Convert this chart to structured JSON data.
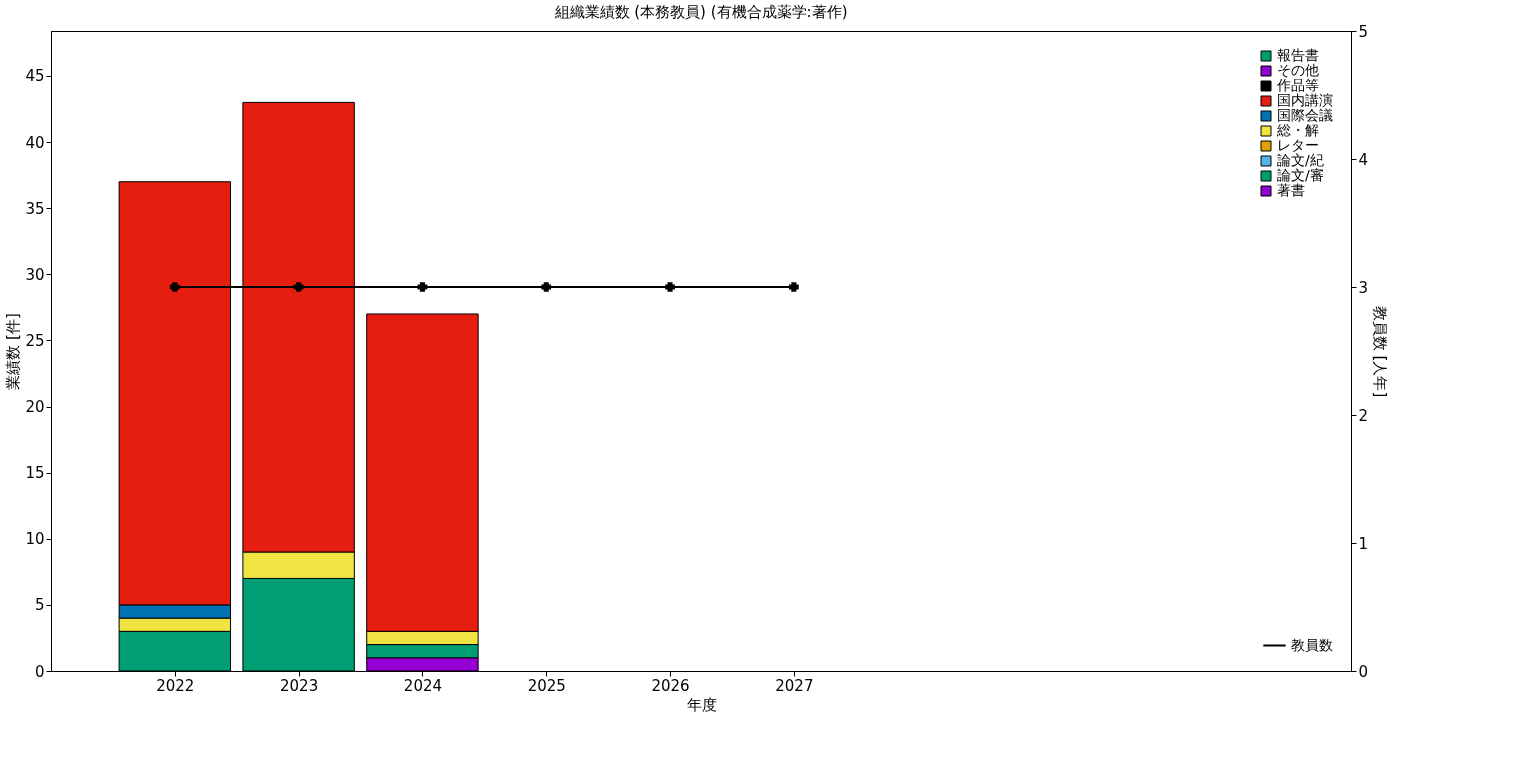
{
  "chart_data": {
    "type": "bar",
    "title": "組織業績数 (本務教員) (有機合成薬学:著作)",
    "xlabel": "年度",
    "ylabel": "業績数 [件]",
    "y2label": "教員数 [人年]",
    "x": [
      2022,
      2023,
      2024,
      2025,
      2026,
      2027
    ],
    "xlim": [
      2021,
      2031.5
    ],
    "xticks": [
      2022,
      2023,
      2024,
      2025,
      2026,
      2027
    ],
    "ylim": [
      0,
      48.4
    ],
    "yticks": [
      0,
      5,
      10,
      15,
      20,
      25,
      30,
      35,
      40,
      45
    ],
    "y2lim": [
      0,
      5
    ],
    "y2ticks": [
      0,
      1,
      2,
      3,
      4,
      5
    ],
    "stacked": true,
    "grid": false,
    "legend": "top right",
    "series": [
      {
        "name": "著書",
        "color": "#9400d3",
        "values": [
          0,
          0,
          1,
          null,
          null,
          null
        ]
      },
      {
        "name": "論文/審",
        "color": "#009e73",
        "values": [
          3,
          7,
          1,
          null,
          null,
          null
        ]
      },
      {
        "name": "論文/紀",
        "color": "#56b4e9",
        "values": [
          0,
          0,
          0,
          null,
          null,
          null
        ]
      },
      {
        "name": "レター",
        "color": "#e69f00",
        "values": [
          0,
          0,
          0,
          null,
          null,
          null
        ]
      },
      {
        "name": "総・解",
        "color": "#f0e442",
        "values": [
          1,
          2,
          1,
          null,
          null,
          null
        ]
      },
      {
        "name": "国際会議",
        "color": "#0072b2",
        "values": [
          1,
          0,
          0,
          null,
          null,
          null
        ]
      },
      {
        "name": "国内講演",
        "color": "#e51e10",
        "values": [
          32,
          34,
          24,
          null,
          null,
          null
        ]
      },
      {
        "name": "作品等",
        "color": "#000000",
        "values": [
          0,
          0,
          0,
          null,
          null,
          null
        ]
      },
      {
        "name": "その他",
        "color": "#9400d3",
        "values": [
          0,
          0,
          0,
          null,
          null,
          null
        ]
      },
      {
        "name": "報告書",
        "color": "#009e73",
        "values": [
          0,
          0,
          0,
          null,
          null,
          null
        ]
      },
      {
        "name": "教員数",
        "color": "#000000",
        "type": "line",
        "axis": "y2",
        "marker": "cross",
        "line_style": "solid",
        "values": [
          3,
          3,
          3,
          3,
          3,
          3
        ]
      }
    ]
  }
}
